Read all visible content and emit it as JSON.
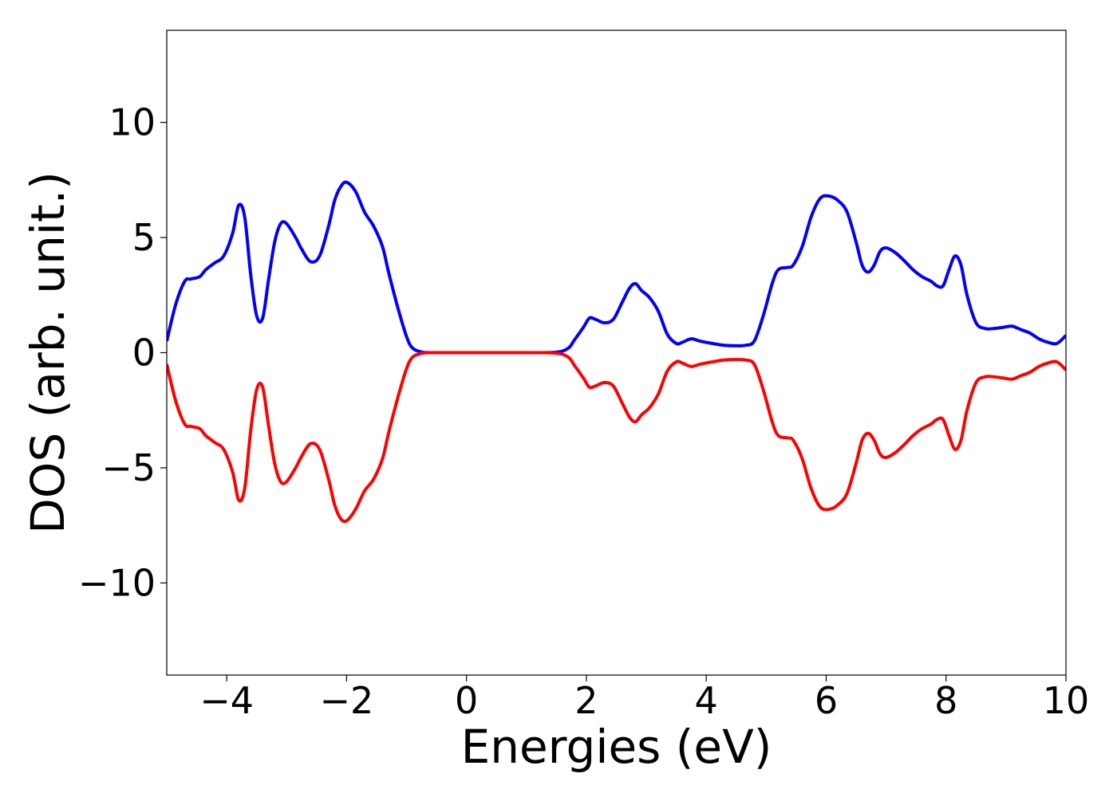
{
  "chart_data": {
    "type": "line",
    "title": "",
    "xlabel": "Energies (eV)",
    "ylabel": "DOS (arb. unit.)",
    "xlim": [
      -5,
      10
    ],
    "ylim": [
      -14,
      14
    ],
    "x_ticks": [
      -4,
      -2,
      0,
      2,
      4,
      6,
      8,
      10
    ],
    "y_ticks": [
      -10,
      -5,
      0,
      5,
      10
    ],
    "x_tick_labels": [
      "−4",
      "−2",
      "0",
      "2",
      "4",
      "6",
      "8",
      "10"
    ],
    "y_tick_labels": [
      "−10",
      "−5",
      "0",
      "5",
      "10"
    ],
    "grid": false,
    "legend": "none",
    "series": [
      {
        "color": "#0000ff",
        "x": [
          -5.0,
          -4.85,
          -4.7,
          -4.6,
          -4.45,
          -4.35,
          -4.2,
          -4.05,
          -3.9,
          -3.8,
          -3.7,
          -3.6,
          -3.5,
          -3.4,
          -3.3,
          -3.2,
          -3.1,
          -3.0,
          -2.85,
          -2.75,
          -2.6,
          -2.45,
          -2.3,
          -2.2,
          -2.1,
          -2.0,
          -1.85,
          -1.7,
          -1.55,
          -1.4,
          -1.3,
          -1.15,
          -1.0,
          -0.9,
          -0.75,
          -0.6,
          -0.5,
          -0.3,
          0.0,
          0.5,
          1.0,
          1.5,
          1.7,
          1.8,
          1.95,
          2.05,
          2.15,
          2.3,
          2.45,
          2.6,
          2.72,
          2.82,
          2.92,
          3.05,
          3.2,
          3.35,
          3.5,
          3.6,
          3.75,
          3.9,
          4.1,
          4.3,
          4.5,
          4.65,
          4.8,
          4.95,
          5.1,
          5.2,
          5.35,
          5.45,
          5.6,
          5.75,
          5.9,
          6.05,
          6.2,
          6.35,
          6.5,
          6.6,
          6.7,
          6.8,
          6.9,
          7.0,
          7.15,
          7.3,
          7.45,
          7.6,
          7.75,
          7.85,
          7.95,
          8.05,
          8.15,
          8.25,
          8.35,
          8.5,
          8.65,
          8.8,
          8.95,
          9.1,
          9.25,
          9.4,
          9.55,
          9.7,
          9.85,
          10.0
        ],
        "y": [
          0.5,
          2.1,
          3.1,
          3.2,
          3.3,
          3.6,
          3.9,
          4.2,
          5.2,
          6.4,
          5.9,
          3.4,
          1.6,
          1.5,
          3.2,
          4.8,
          5.6,
          5.6,
          5.0,
          4.5,
          3.95,
          4.2,
          5.5,
          6.6,
          7.2,
          7.4,
          7.0,
          6.1,
          5.5,
          4.6,
          3.5,
          2.0,
          0.7,
          0.2,
          0.03,
          0.0,
          0.0,
          0.0,
          0.0,
          0.0,
          0.0,
          0.02,
          0.2,
          0.55,
          1.1,
          1.5,
          1.45,
          1.3,
          1.45,
          2.2,
          2.8,
          3.0,
          2.7,
          2.4,
          1.8,
          0.8,
          0.4,
          0.45,
          0.6,
          0.5,
          0.4,
          0.32,
          0.3,
          0.32,
          0.5,
          1.6,
          3.0,
          3.6,
          3.7,
          3.8,
          4.6,
          5.9,
          6.7,
          6.8,
          6.6,
          6.1,
          4.8,
          3.8,
          3.5,
          3.8,
          4.4,
          4.55,
          4.35,
          4.0,
          3.6,
          3.3,
          3.1,
          2.9,
          2.9,
          3.6,
          4.2,
          3.8,
          2.5,
          1.3,
          1.05,
          1.05,
          1.1,
          1.15,
          1.0,
          0.85,
          0.6,
          0.45,
          0.4,
          0.75
        ]
      },
      {
        "color": "#ff0000",
        "x": [
          -5.0,
          -4.85,
          -4.7,
          -4.6,
          -4.45,
          -4.35,
          -4.2,
          -4.05,
          -3.9,
          -3.8,
          -3.7,
          -3.6,
          -3.5,
          -3.4,
          -3.3,
          -3.2,
          -3.1,
          -3.0,
          -2.85,
          -2.75,
          -2.6,
          -2.45,
          -2.3,
          -2.2,
          -2.1,
          -2.0,
          -1.85,
          -1.7,
          -1.55,
          -1.4,
          -1.3,
          -1.15,
          -1.0,
          -0.9,
          -0.75,
          -0.6,
          -0.5,
          -0.3,
          0.0,
          0.5,
          1.0,
          1.5,
          1.7,
          1.8,
          1.95,
          2.05,
          2.15,
          2.3,
          2.45,
          2.6,
          2.72,
          2.82,
          2.92,
          3.05,
          3.2,
          3.35,
          3.5,
          3.6,
          3.75,
          3.9,
          4.1,
          4.3,
          4.5,
          4.65,
          4.8,
          4.95,
          5.1,
          5.2,
          5.35,
          5.45,
          5.6,
          5.75,
          5.9,
          6.05,
          6.2,
          6.35,
          6.5,
          6.6,
          6.7,
          6.8,
          6.9,
          7.0,
          7.15,
          7.3,
          7.45,
          7.6,
          7.75,
          7.85,
          7.95,
          8.05,
          8.15,
          8.25,
          8.35,
          8.5,
          8.65,
          8.8,
          8.95,
          9.1,
          9.25,
          9.4,
          9.55,
          9.7,
          9.85,
          10.0
        ],
        "y": [
          -0.5,
          -2.1,
          -3.1,
          -3.2,
          -3.3,
          -3.6,
          -3.9,
          -4.2,
          -5.2,
          -6.4,
          -5.9,
          -3.4,
          -1.6,
          -1.5,
          -3.2,
          -4.8,
          -5.6,
          -5.6,
          -5.0,
          -4.5,
          -3.95,
          -4.2,
          -5.5,
          -6.6,
          -7.2,
          -7.3,
          -6.8,
          -6.0,
          -5.5,
          -4.6,
          -3.5,
          -2.0,
          -0.7,
          -0.2,
          -0.03,
          0.0,
          0.0,
          0.0,
          0.0,
          0.0,
          0.0,
          -0.02,
          -0.2,
          -0.55,
          -1.1,
          -1.5,
          -1.45,
          -1.3,
          -1.45,
          -2.2,
          -2.8,
          -3.0,
          -2.7,
          -2.4,
          -1.8,
          -0.8,
          -0.4,
          -0.45,
          -0.6,
          -0.5,
          -0.4,
          -0.32,
          -0.3,
          -0.32,
          -0.5,
          -1.6,
          -3.0,
          -3.6,
          -3.7,
          -3.8,
          -4.6,
          -5.9,
          -6.7,
          -6.8,
          -6.6,
          -6.1,
          -4.8,
          -3.8,
          -3.5,
          -3.8,
          -4.4,
          -4.55,
          -4.35,
          -4.0,
          -3.6,
          -3.3,
          -3.1,
          -2.9,
          -2.9,
          -3.6,
          -4.2,
          -3.8,
          -2.5,
          -1.3,
          -1.05,
          -1.05,
          -1.1,
          -1.15,
          -1.0,
          -0.85,
          -0.6,
          -0.45,
          -0.4,
          -0.75
        ]
      }
    ]
  }
}
